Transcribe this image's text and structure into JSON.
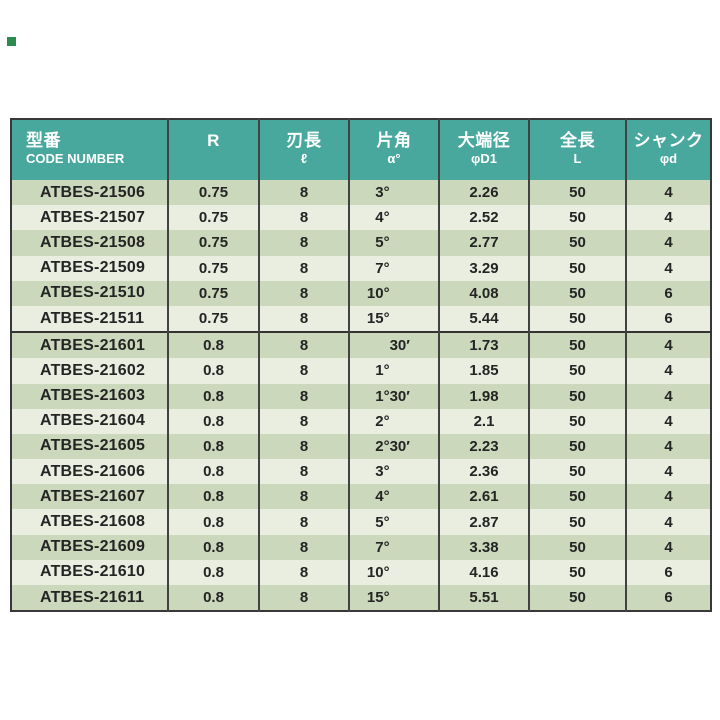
{
  "colors": {
    "header_bg": "#49a89d",
    "header_text": "#ffffff",
    "row_dark": "#ccd8bb",
    "row_light": "#e9eee0",
    "border": "#383838",
    "body_text": "#242424",
    "corner_marker": "#2e8b50"
  },
  "marker": {
    "label": ""
  },
  "table": {
    "columns": [
      {
        "jp": "型番",
        "sub": "CODE NUMBER"
      },
      {
        "jp": "R",
        "sub": ""
      },
      {
        "jp": "刃長",
        "sub": "ℓ"
      },
      {
        "jp": "片角",
        "sub": "α°"
      },
      {
        "jp": "大端径",
        "sub": "φD1"
      },
      {
        "jp": "全長",
        "sub": "L"
      },
      {
        "jp": "シャンク",
        "sub": "φd"
      }
    ],
    "rows": [
      {
        "code": "ATBES-21506",
        "r": "0.75",
        "blade_len": "8",
        "angle": "3°",
        "d1": "2.26",
        "total_len": "50",
        "shank": "4",
        "group_start": false
      },
      {
        "code": "ATBES-21507",
        "r": "0.75",
        "blade_len": "8",
        "angle": "4°",
        "d1": "2.52",
        "total_len": "50",
        "shank": "4",
        "group_start": false
      },
      {
        "code": "ATBES-21508",
        "r": "0.75",
        "blade_len": "8",
        "angle": "5°",
        "d1": "2.77",
        "total_len": "50",
        "shank": "4",
        "group_start": false
      },
      {
        "code": "ATBES-21509",
        "r": "0.75",
        "blade_len": "8",
        "angle": "7°",
        "d1": "3.29",
        "total_len": "50",
        "shank": "4",
        "group_start": false
      },
      {
        "code": "ATBES-21510",
        "r": "0.75",
        "blade_len": "8",
        "angle": "10°",
        "d1": "4.08",
        "total_len": "50",
        "shank": "6",
        "group_start": false
      },
      {
        "code": "ATBES-21511",
        "r": "0.75",
        "blade_len": "8",
        "angle": "15°",
        "d1": "5.44",
        "total_len": "50",
        "shank": "6",
        "group_start": false
      },
      {
        "code": "ATBES-21601",
        "r": "0.8",
        "blade_len": "8",
        "angle": "30′",
        "d1": "1.73",
        "total_len": "50",
        "shank": "4",
        "group_start": true
      },
      {
        "code": "ATBES-21602",
        "r": "0.8",
        "blade_len": "8",
        "angle": "1°",
        "d1": "1.85",
        "total_len": "50",
        "shank": "4",
        "group_start": false
      },
      {
        "code": "ATBES-21603",
        "r": "0.8",
        "blade_len": "8",
        "angle": "1°30′",
        "d1": "1.98",
        "total_len": "50",
        "shank": "4",
        "group_start": false
      },
      {
        "code": "ATBES-21604",
        "r": "0.8",
        "blade_len": "8",
        "angle": "2°",
        "d1": "2.1",
        "total_len": "50",
        "shank": "4",
        "group_start": false
      },
      {
        "code": "ATBES-21605",
        "r": "0.8",
        "blade_len": "8",
        "angle": "2°30′",
        "d1": "2.23",
        "total_len": "50",
        "shank": "4",
        "group_start": false
      },
      {
        "code": "ATBES-21606",
        "r": "0.8",
        "blade_len": "8",
        "angle": "3°",
        "d1": "2.36",
        "total_len": "50",
        "shank": "4",
        "group_start": false
      },
      {
        "code": "ATBES-21607",
        "r": "0.8",
        "blade_len": "8",
        "angle": "4°",
        "d1": "2.61",
        "total_len": "50",
        "shank": "4",
        "group_start": false
      },
      {
        "code": "ATBES-21608",
        "r": "0.8",
        "blade_len": "8",
        "angle": "5°",
        "d1": "2.87",
        "total_len": "50",
        "shank": "4",
        "group_start": false
      },
      {
        "code": "ATBES-21609",
        "r": "0.8",
        "blade_len": "8",
        "angle": "7°",
        "d1": "3.38",
        "total_len": "50",
        "shank": "4",
        "group_start": false
      },
      {
        "code": "ATBES-21610",
        "r": "0.8",
        "blade_len": "8",
        "angle": "10°",
        "d1": "4.16",
        "total_len": "50",
        "shank": "6",
        "group_start": false
      },
      {
        "code": "ATBES-21611",
        "r": "0.8",
        "blade_len": "8",
        "angle": "15°",
        "d1": "5.51",
        "total_len": "50",
        "shank": "6",
        "group_start": false
      }
    ]
  }
}
